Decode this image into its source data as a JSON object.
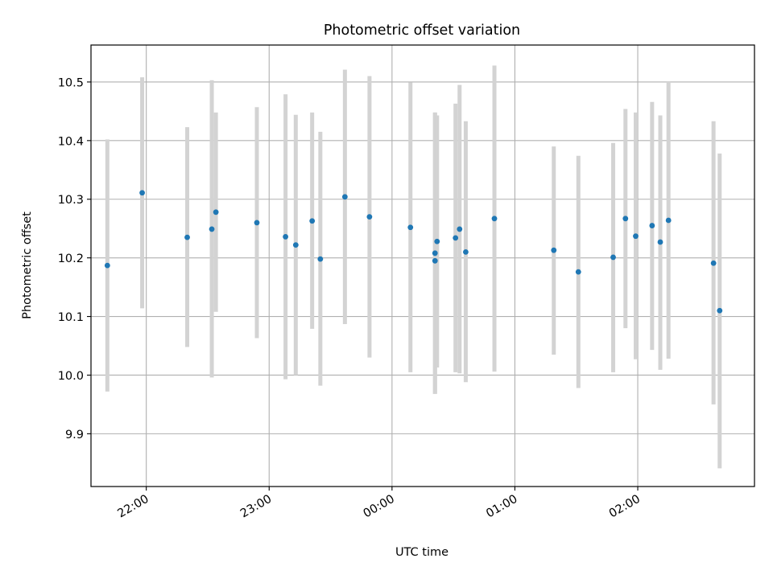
{
  "chart_data": {
    "type": "scatter",
    "title": "Photometric offset variation",
    "xlabel": "UTC time",
    "ylabel": "Photometric offset",
    "x_ticks": [
      "22:00",
      "23:00",
      "00:00",
      "01:00",
      "02:00"
    ],
    "xlim": [
      "21:33",
      "02:57"
    ],
    "y_ticks": [
      9.9,
      10.0,
      10.1,
      10.2,
      10.3,
      10.4,
      10.5
    ],
    "ylim": [
      9.81,
      10.563
    ],
    "grid": true,
    "series": [
      {
        "points": [
          {
            "x": "21:41",
            "y": 10.187,
            "err_low": 9.972,
            "err_high": 10.402
          },
          {
            "x": "21:58",
            "y": 10.311,
            "err_low": 10.114,
            "err_high": 10.508
          },
          {
            "x": "22:20",
            "y": 10.235,
            "err_low": 10.048,
            "err_high": 10.423
          },
          {
            "x": "22:32",
            "y": 10.249,
            "err_low": 9.996,
            "err_high": 10.503
          },
          {
            "x": "22:34",
            "y": 10.278,
            "err_low": 10.108,
            "err_high": 10.448
          },
          {
            "x": "22:54",
            "y": 10.26,
            "err_low": 10.063,
            "err_high": 10.457
          },
          {
            "x": "23:08",
            "y": 10.236,
            "err_low": 9.993,
            "err_high": 10.479
          },
          {
            "x": "23:13",
            "y": 10.222,
            "err_low": 10.0,
            "err_high": 10.444
          },
          {
            "x": "23:21",
            "y": 10.263,
            "err_low": 10.079,
            "err_high": 10.448
          },
          {
            "x": "23:25",
            "y": 10.198,
            "err_low": 9.982,
            "err_high": 10.415
          },
          {
            "x": "23:37",
            "y": 10.304,
            "err_low": 10.087,
            "err_high": 10.521
          },
          {
            "x": "23:49",
            "y": 10.27,
            "err_low": 10.03,
            "err_high": 10.51
          },
          {
            "x": "00:09",
            "y": 10.252,
            "err_low": 10.005,
            "err_high": 10.499
          },
          {
            "x": "00:21",
            "y": 10.208,
            "err_low": 9.968,
            "err_high": 10.448
          },
          {
            "x": "00:21",
            "y": 10.195,
            "err_low": 9.968,
            "err_high": 10.448
          },
          {
            "x": "00:22",
            "y": 10.228,
            "err_low": 10.013,
            "err_high": 10.443
          },
          {
            "x": "00:31",
            "y": 10.234,
            "err_low": 10.005,
            "err_high": 10.463
          },
          {
            "x": "00:33",
            "y": 10.249,
            "err_low": 10.003,
            "err_high": 10.495
          },
          {
            "x": "00:36",
            "y": 10.21,
            "err_low": 9.988,
            "err_high": 10.433
          },
          {
            "x": "00:50",
            "y": 10.267,
            "err_low": 10.006,
            "err_high": 10.528
          },
          {
            "x": "01:19",
            "y": 10.213,
            "err_low": 10.035,
            "err_high": 10.39
          },
          {
            "x": "01:31",
            "y": 10.176,
            "err_low": 9.978,
            "err_high": 10.374
          },
          {
            "x": "01:48",
            "y": 10.201,
            "err_low": 10.005,
            "err_high": 10.396
          },
          {
            "x": "01:54",
            "y": 10.267,
            "err_low": 10.08,
            "err_high": 10.454
          },
          {
            "x": "01:59",
            "y": 10.237,
            "err_low": 10.027,
            "err_high": 10.448
          },
          {
            "x": "02:07",
            "y": 10.255,
            "err_low": 10.043,
            "err_high": 10.466
          },
          {
            "x": "02:11",
            "y": 10.227,
            "err_low": 10.009,
            "err_high": 10.443
          },
          {
            "x": "02:15",
            "y": 10.264,
            "err_low": 10.028,
            "err_high": 10.5
          },
          {
            "x": "02:37",
            "y": 10.191,
            "err_low": 9.95,
            "err_high": 10.433
          },
          {
            "x": "02:40",
            "y": 10.11,
            "err_low": 9.841,
            "err_high": 10.378
          }
        ]
      }
    ],
    "colors": {
      "marker": "#1f77b4",
      "errorbar": "#d3d3d3",
      "grid": "#b0b0b0",
      "axes": "#000000"
    }
  }
}
